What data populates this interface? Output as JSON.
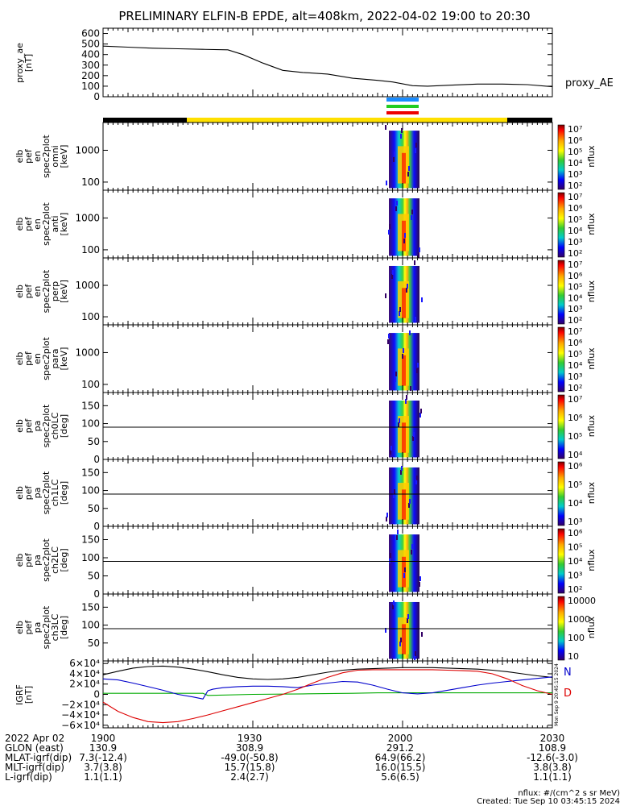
{
  "title": "PRELIMINARY ELFIN-B EPDE, alt=408km, 2022-04-02 19:00 to 20:30",
  "colors": {
    "N": "#0000cc",
    "D": "#dd0000",
    "black": "#000000",
    "green": "#00aa00",
    "yellow": "#ffe000"
  },
  "chart_data": [
    {
      "type": "line",
      "panel": "proxy_ae",
      "ylabel_lines": [
        "proxy_ae",
        "[nT]"
      ],
      "ylim": [
        0,
        650
      ],
      "yticks": [
        "600",
        "500",
        "400",
        "300",
        "200",
        "100",
        "0"
      ],
      "yticks_values": [
        600,
        500,
        400,
        300,
        200,
        100,
        0
      ],
      "series": [
        {
          "name": "proxy_AE",
          "x": [
            0,
            5,
            10,
            15,
            20,
            25,
            28,
            32,
            36,
            40,
            45,
            50,
            55,
            58,
            62,
            65,
            70,
            75,
            80,
            85,
            90
          ],
          "values": [
            480,
            470,
            460,
            455,
            450,
            445,
            400,
            320,
            250,
            230,
            215,
            175,
            155,
            140,
            105,
            100,
            110,
            120,
            120,
            115,
            95
          ]
        }
      ]
    },
    {
      "type": "heatmap",
      "panel": "elb_pef_en_spec2plot_omni",
      "ylabel_lines": [
        "elb",
        "pef",
        "en",
        "spec2plot",
        "omni",
        "[keV]"
      ],
      "yticks": [
        "1000",
        "100"
      ],
      "colorbar_ticks": [
        "10⁷",
        "10⁶",
        "10⁵",
        "10⁴",
        "10³",
        "10²"
      ],
      "colorbar_label": "nflux"
    },
    {
      "type": "heatmap",
      "panel": "elb_pef_en_spec2plot_anti",
      "ylabel_lines": [
        "elb",
        "pef",
        "en",
        "spec2plot",
        "anti",
        "[keV]"
      ],
      "yticks": [
        "1000",
        "100"
      ],
      "colorbar_ticks": [
        "10⁷",
        "10⁶",
        "10⁵",
        "10⁴",
        "10³",
        "10²"
      ],
      "colorbar_label": "nflux"
    },
    {
      "type": "heatmap",
      "panel": "elb_pef_en_spec2plot_perp",
      "ylabel_lines": [
        "elb",
        "pef",
        "en",
        "spec2plot",
        "perp",
        "[keV]"
      ],
      "yticks": [
        "1000",
        "100"
      ],
      "colorbar_ticks": [
        "10⁷",
        "10⁶",
        "10⁵",
        "10⁴",
        "10³",
        "10²"
      ],
      "colorbar_label": "nflux"
    },
    {
      "type": "heatmap",
      "panel": "elb_pef_en_spec2plot_para",
      "ylabel_lines": [
        "elb",
        "pef",
        "en",
        "spec2plot",
        "para",
        "[keV]"
      ],
      "yticks": [
        "1000",
        "100"
      ],
      "colorbar_ticks": [
        "10⁷",
        "10⁶",
        "10⁵",
        "10⁴",
        "10³",
        "10²"
      ],
      "colorbar_label": "nflux"
    },
    {
      "type": "heatmap",
      "panel": "elb_pef_pa_spec2plot_ch0LC",
      "ylabel_lines": [
        "elb",
        "pef",
        "pa",
        "spec2plot",
        "ch0LC",
        "[deg]"
      ],
      "yticks": [
        "150",
        "100",
        "50",
        "0"
      ],
      "colorbar_ticks": [
        "10⁷",
        "10⁶",
        "10⁵",
        "10⁴"
      ],
      "colorbar_label": "nflux"
    },
    {
      "type": "heatmap",
      "panel": "elb_pef_pa_spec2plot_ch1LC",
      "ylabel_lines": [
        "elb",
        "pef",
        "pa",
        "spec2plot",
        "ch1LC",
        "[deg]"
      ],
      "yticks": [
        "150",
        "100",
        "50",
        "0"
      ],
      "colorbar_ticks": [
        "10⁶",
        "10⁵",
        "10⁴",
        "10³"
      ],
      "colorbar_label": "nflux"
    },
    {
      "type": "heatmap",
      "panel": "elb_pef_pa_spec2plot_ch2LC",
      "ylabel_lines": [
        "elb",
        "pef",
        "pa",
        "spec2plot",
        "ch2LC",
        "[deg]"
      ],
      "yticks": [
        "150",
        "100",
        "50",
        "0"
      ],
      "colorbar_ticks": [
        "10⁶",
        "10⁵",
        "10⁴",
        "10³",
        "10²"
      ],
      "colorbar_label": "nflux"
    },
    {
      "type": "heatmap",
      "panel": "elb_pef_pa_spec2plot_ch3LC",
      "ylabel_lines": [
        "elb",
        "pef",
        "pa",
        "spec2plot",
        "ch3LC",
        "[deg]"
      ],
      "yticks": [
        "150",
        "100",
        "50"
      ],
      "colorbar_ticks": [
        "10000",
        "1000",
        "100",
        "10"
      ],
      "colorbar_label": "nflux"
    },
    {
      "type": "line",
      "panel": "IGRF",
      "ylabel_lines": [
        "IGRF",
        "[nT]"
      ],
      "ylim": [
        -65000,
        65000
      ],
      "yticks": [
        "6×10⁴",
        "4×10⁴",
        "2×10⁴",
        "0",
        "−2×10⁴",
        "−4×10⁴",
        "−6×10⁴"
      ],
      "yticks_values": [
        60000,
        40000,
        20000,
        0,
        -20000,
        -40000,
        -60000
      ],
      "side_stamp": "Mon Sep  9 20:45:15 2024",
      "series": [
        {
          "name": "N",
          "label_color": "#0000cc",
          "x": [
            0,
            3,
            6,
            9,
            12,
            15,
            18,
            20,
            21,
            22,
            24,
            27,
            30,
            33,
            36,
            39,
            42,
            45,
            48,
            51,
            54,
            57,
            60,
            63,
            66,
            69,
            72,
            75,
            78,
            81,
            84,
            87,
            90
          ],
          "values": [
            30000,
            28000,
            22000,
            15000,
            8000,
            0,
            -5000,
            -9000,
            7000,
            10000,
            13000,
            15000,
            16000,
            16000,
            15000,
            13000,
            18000,
            22000,
            25000,
            24000,
            18000,
            10000,
            3000,
            1000,
            3000,
            8000,
            13000,
            18000,
            22000,
            25000,
            28000,
            31000,
            34000
          ]
        },
        {
          "name": "D",
          "label_color": "#dd0000",
          "x": [
            0,
            3,
            6,
            9,
            12,
            15,
            18,
            21,
            24,
            27,
            30,
            33,
            36,
            39,
            42,
            45,
            48,
            51,
            54,
            57,
            60,
            63,
            66,
            69,
            72,
            75,
            78,
            81,
            84,
            87,
            90
          ],
          "values": [
            -15000,
            -33000,
            -45000,
            -53000,
            -55000,
            -53000,
            -47000,
            -40000,
            -32000,
            -24000,
            -16000,
            -8000,
            0,
            10000,
            22000,
            33000,
            42000,
            47000,
            48000,
            48000,
            48000,
            48000,
            48000,
            47000,
            46000,
            45000,
            40000,
            30000,
            17000,
            7000,
            0
          ]
        },
        {
          "name": "",
          "x": [
            0,
            3,
            6,
            9,
            12,
            15,
            18,
            21,
            24,
            27,
            30,
            33,
            36,
            39,
            42,
            45,
            48,
            51,
            54,
            57,
            60,
            63,
            66,
            69,
            72,
            75,
            78,
            81,
            84,
            87,
            90
          ],
          "values": [
            38000,
            45000,
            51000,
            54000,
            55000,
            53000,
            49000,
            44000,
            38000,
            33000,
            30000,
            29000,
            30000,
            33000,
            38000,
            43000,
            47000,
            49000,
            50000,
            51000,
            52000,
            52000,
            52000,
            51000,
            50000,
            49000,
            47000,
            44000,
            40000,
            36000,
            33000
          ]
        },
        {
          "name": "",
          "x": [
            0,
            10,
            20,
            21,
            30,
            40,
            50,
            55,
            60,
            70,
            80,
            90
          ],
          "values": [
            2000,
            2000,
            2000,
            -2000,
            0,
            1000,
            2000,
            3000,
            3000,
            3000,
            3000,
            3000
          ]
        }
      ]
    }
  ],
  "proxy_label": "proxy_AE",
  "igrf_labels": {
    "N": "N",
    "D": "D"
  },
  "footer": {
    "rows": [
      {
        "label": "2022 Apr 02",
        "v": [
          "1900",
          "1930",
          "2000",
          "2030"
        ]
      },
      {
        "label": "GLON (east)",
        "v": [
          "130.9",
          "308.9",
          "291.2",
          "108.9"
        ]
      },
      {
        "label": "MLAT-igrf(dip)",
        "v": [
          "7.3(-12.4)",
          "-49.0(-50.8)",
          "64.9(66.2)",
          "-12.6(-3.0)"
        ]
      },
      {
        "label": "MLT-igrf(dip)",
        "v": [
          "3.7(3.8)",
          "15.7(15.8)",
          "16.0(15.5)",
          "3.8(3.8)"
        ]
      },
      {
        "label": "L-igrf(dip)",
        "v": [
          "1.1(1.1)",
          "2.4(2.7)",
          "5.6(6.5)",
          "1.1(1.1)"
        ]
      }
    ],
    "nflux_note": "nflux: #/(cm^2 s sr MeV)",
    "created": "Created: Tue Sep 10 03:45:15 2024"
  }
}
